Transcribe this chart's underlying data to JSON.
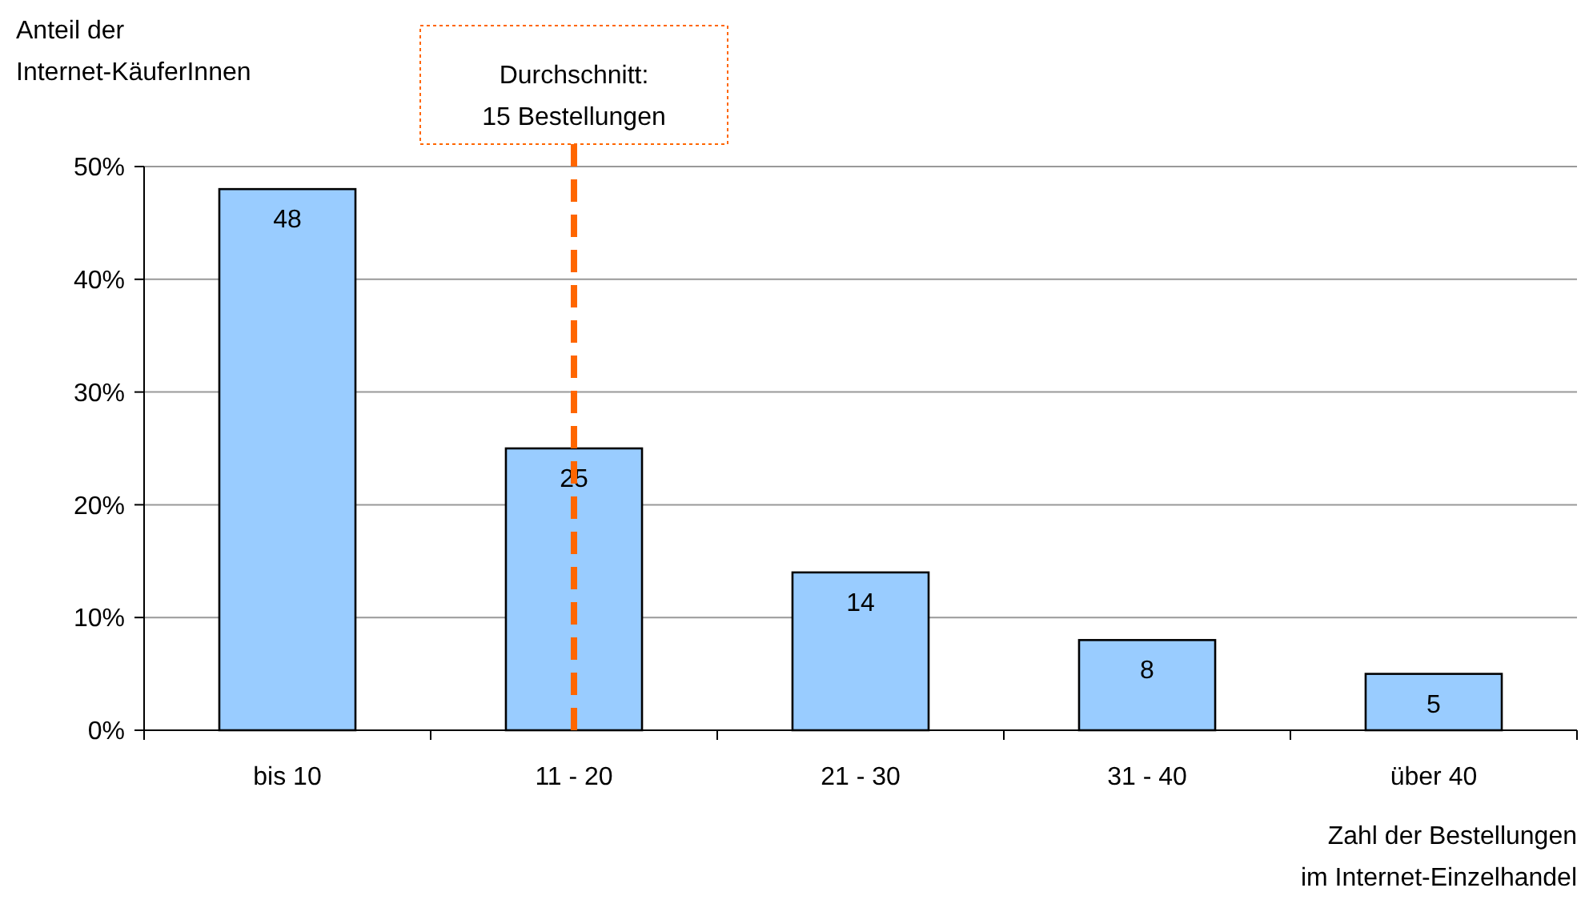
{
  "chart_data": {
    "type": "bar",
    "ylabel": "Anteil der\nInternet-KäuferInnen",
    "xlabel": "Zahl der Bestellungen\nim Internet-Einzelhandel",
    "categories": [
      "bis 10",
      "11 - 20",
      "21 - 30",
      "31 - 40",
      "über 40"
    ],
    "values": [
      48,
      25,
      14,
      8,
      5
    ],
    "color": "#99ccff",
    "data_labels": true,
    "ylim": [
      0,
      50
    ],
    "yticks": [
      {
        "value": 0,
        "label": "0%"
      },
      {
        "value": 10,
        "label": "10%"
      },
      {
        "value": 20,
        "label": "20%"
      },
      {
        "value": 30,
        "label": "30%"
      },
      {
        "value": 40,
        "label": "40%"
      },
      {
        "value": 50,
        "label": "50%"
      }
    ],
    "grid": "y",
    "ref_lines": [
      {
        "axis": "x",
        "value": "11 - 20",
        "label": "Durchschnitt:\n15 Bestellungen",
        "color": "#ff6600",
        "line_style": "dashed"
      }
    ]
  }
}
